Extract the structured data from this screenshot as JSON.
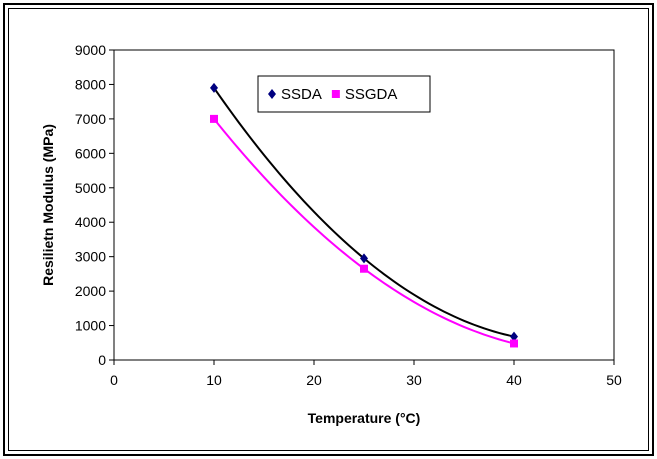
{
  "chart_data": {
    "type": "line",
    "xlabel": "Temperature (°C)",
    "ylabel": "Resilietn Modulus (MPa)",
    "xlim": [
      0,
      50
    ],
    "ylim": [
      0,
      9000
    ],
    "xticks": [
      0,
      10,
      20,
      30,
      40,
      50
    ],
    "yticks": [
      0,
      1000,
      2000,
      3000,
      4000,
      5000,
      6000,
      7000,
      8000,
      9000
    ],
    "grid": false,
    "legend_position": "top-center",
    "series": [
      {
        "name": "SSDA",
        "x": [
          10,
          25,
          40
        ],
        "y": [
          7900,
          2950,
          680
        ],
        "marker": "diamond",
        "marker_color": "#000080",
        "line_color": "#000000"
      },
      {
        "name": "SSGDA",
        "x": [
          10,
          25,
          40
        ],
        "y": [
          7000,
          2650,
          480
        ],
        "marker": "square",
        "marker_color": "#ff00ff",
        "line_color": "#ff00ff"
      }
    ]
  }
}
